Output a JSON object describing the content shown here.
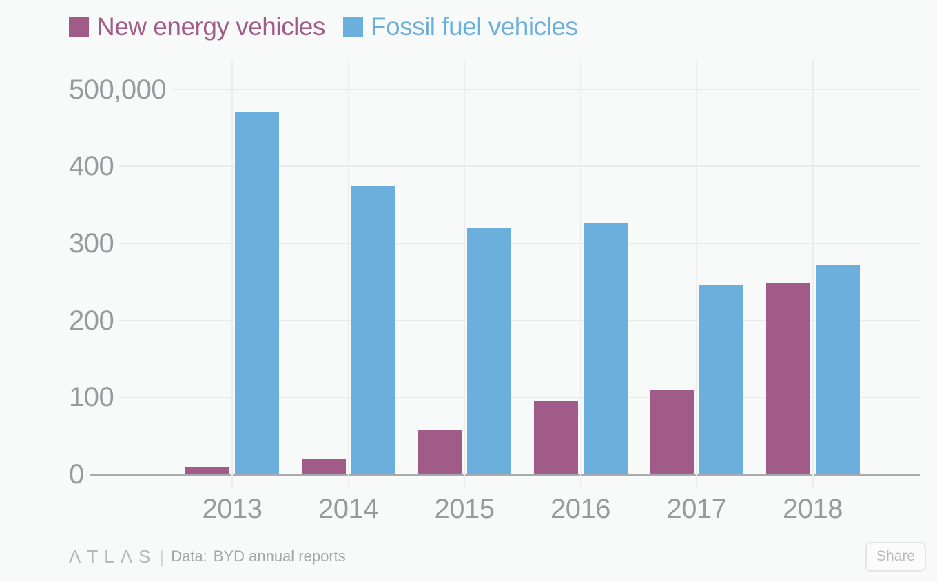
{
  "page": {
    "background": "#f8f9f9"
  },
  "chart_data": {
    "type": "bar",
    "title": "",
    "categories": [
      "2013",
      "2014",
      "2015",
      "2016",
      "2017",
      "2018"
    ],
    "series": [
      {
        "name": "New energy vehicles",
        "color": "#a15b88",
        "values": [
          10000,
          20000,
          58000,
          96000,
          110000,
          248000
        ]
      },
      {
        "name": "Fossil fuel vehicles",
        "color": "#6bafdd",
        "values": [
          470000,
          374000,
          320000,
          326000,
          245000,
          272000
        ]
      }
    ],
    "xlabel": "",
    "ylabel": "",
    "ylim": [
      0,
      500000
    ],
    "yticks": [
      {
        "value": 0,
        "label": "0"
      },
      {
        "value": 100000,
        "label": "100"
      },
      {
        "value": 200000,
        "label": "200"
      },
      {
        "value": 300000,
        "label": "300"
      },
      {
        "value": 400000,
        "label": "400"
      },
      {
        "value": 500000,
        "label": "500,000"
      }
    ],
    "grid": true,
    "legend_position": "top"
  },
  "footer": {
    "logo": "ΛTLΛS",
    "separator": "|",
    "source_label": "Data:",
    "source_text": "BYD annual reports",
    "share_label": "Share"
  }
}
